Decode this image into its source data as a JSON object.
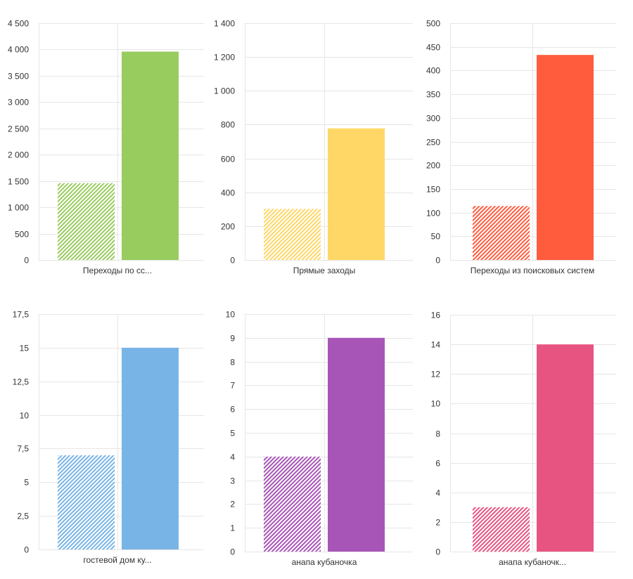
{
  "chart_data": [
    {
      "type": "bar",
      "categories": [
        "Переходы по сс..."
      ],
      "series": [
        {
          "values": [
            1460
          ]
        },
        {
          "values": [
            3960
          ]
        }
      ],
      "color": "#99cc5f",
      "ylim": [
        0,
        4500
      ],
      "yticks": [
        "0",
        "500",
        "1 000",
        "1 500",
        "2 000",
        "2 500",
        "3 000",
        "3 500",
        "4 000",
        "4 500"
      ],
      "grid": true,
      "first_series_pattern": "hatched"
    },
    {
      "type": "bar",
      "categories": [
        "Прямые заходы"
      ],
      "series": [
        {
          "values": [
            302
          ]
        },
        {
          "values": [
            778
          ]
        }
      ],
      "color": "#fed766",
      "ylim": [
        0,
        1400
      ],
      "yticks": [
        "0",
        "200",
        "400",
        "600",
        "800",
        "1 000",
        "1 200",
        "1 400"
      ],
      "grid": true,
      "first_series_pattern": "hatched"
    },
    {
      "type": "bar",
      "categories": [
        "Переходы из поисковых систем"
      ],
      "series": [
        {
          "values": [
            114
          ]
        },
        {
          "values": [
            433
          ]
        }
      ],
      "color": "#ff5c3e",
      "ylim": [
        0,
        500
      ],
      "yticks": [
        "0",
        "50",
        "100",
        "150",
        "200",
        "250",
        "300",
        "350",
        "400",
        "450",
        "500"
      ],
      "grid": true,
      "first_series_pattern": "hatched"
    },
    {
      "type": "bar",
      "categories": [
        "гостевой дом ку..."
      ],
      "series": [
        {
          "values": [
            7
          ]
        },
        {
          "values": [
            15
          ]
        }
      ],
      "color": "#78b5e6",
      "ylim": [
        0,
        17.5
      ],
      "yticks": [
        "0",
        "2,5",
        "5",
        "7,5",
        "10",
        "12,5",
        "15",
        "17,5"
      ],
      "grid": true,
      "first_series_pattern": "hatched"
    },
    {
      "type": "bar",
      "categories": [
        "анапа кубаночка"
      ],
      "series": [
        {
          "values": [
            4
          ]
        },
        {
          "values": [
            9
          ]
        }
      ],
      "color": "#a855b8",
      "ylim": [
        0,
        10
      ],
      "yticks": [
        "0",
        "1",
        "2",
        "3",
        "4",
        "5",
        "6",
        "7",
        "8",
        "9",
        "10"
      ],
      "grid": true,
      "first_series_pattern": "hatched"
    },
    {
      "type": "bar",
      "categories": [
        "анапа кубаночк..."
      ],
      "series": [
        {
          "values": [
            3
          ]
        },
        {
          "values": [
            14
          ]
        }
      ],
      "color": "#e85482",
      "ylim": [
        0,
        16
      ],
      "yticks": [
        "0",
        "2",
        "4",
        "6",
        "8",
        "10",
        "12",
        "14",
        "16"
      ],
      "grid": true,
      "first_series_pattern": "hatched"
    }
  ]
}
